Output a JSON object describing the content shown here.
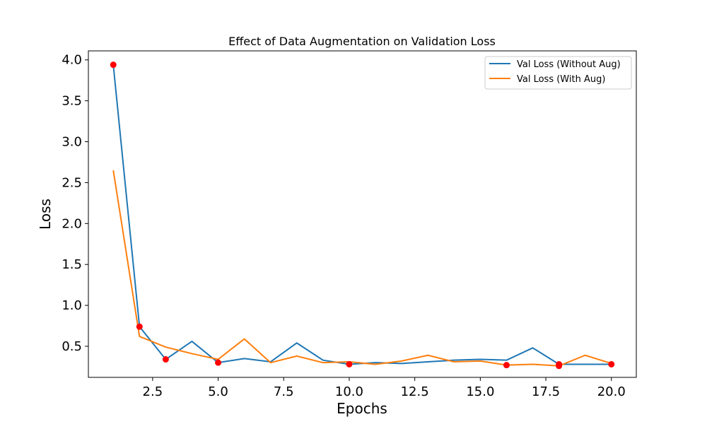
{
  "chart_data": {
    "type": "line",
    "title": "Effect of Data Augmentation on Validation Loss",
    "xlabel": "Epochs",
    "ylabel": "Loss",
    "xlim": [
      0.05,
      20.95
    ],
    "ylim": [
      0.12,
      4.11
    ],
    "xticks": [
      2.5,
      5.0,
      7.5,
      10.0,
      12.5,
      15.0,
      17.5,
      20.0
    ],
    "xtick_labels": [
      "2.5",
      "5.0",
      "7.5",
      "10.0",
      "12.5",
      "15.0",
      "17.5",
      "20.0"
    ],
    "yticks": [
      0.5,
      1.0,
      1.5,
      2.0,
      2.5,
      3.0,
      3.5,
      4.0
    ],
    "ytick_labels": [
      "0.5",
      "1.0",
      "1.5",
      "2.0",
      "2.5",
      "3.0",
      "3.5",
      "4.0"
    ],
    "grid": false,
    "legend_position": "top-right",
    "x": [
      1,
      2,
      3,
      4,
      5,
      6,
      7,
      8,
      9,
      10,
      11,
      12,
      13,
      14,
      15,
      16,
      17,
      18,
      19,
      20
    ],
    "series": [
      {
        "name": "Val Loss (Without Aug)",
        "color": "#1f77b4",
        "values": [
          3.94,
          0.74,
          0.34,
          0.56,
          0.3,
          0.35,
          0.31,
          0.54,
          0.33,
          0.28,
          0.3,
          0.29,
          0.31,
          0.33,
          0.34,
          0.33,
          0.48,
          0.28,
          0.28,
          0.28
        ]
      },
      {
        "name": "Val Loss (With Aug)",
        "color": "#ff7f0e",
        "values": [
          2.65,
          0.62,
          0.49,
          0.41,
          0.34,
          0.59,
          0.3,
          0.38,
          0.3,
          0.31,
          0.28,
          0.32,
          0.39,
          0.31,
          0.32,
          0.27,
          0.28,
          0.26,
          0.39,
          0.29
        ]
      }
    ],
    "markers": {
      "color": "#ff0000",
      "points": [
        {
          "x": 1,
          "y": 3.94
        },
        {
          "x": 2,
          "y": 0.74
        },
        {
          "x": 3,
          "y": 0.34
        },
        {
          "x": 5,
          "y": 0.3
        },
        {
          "x": 10,
          "y": 0.28
        },
        {
          "x": 16,
          "y": 0.27
        },
        {
          "x": 18,
          "y": 0.28
        },
        {
          "x": 18,
          "y": 0.26
        },
        {
          "x": 20,
          "y": 0.28
        }
      ]
    }
  }
}
